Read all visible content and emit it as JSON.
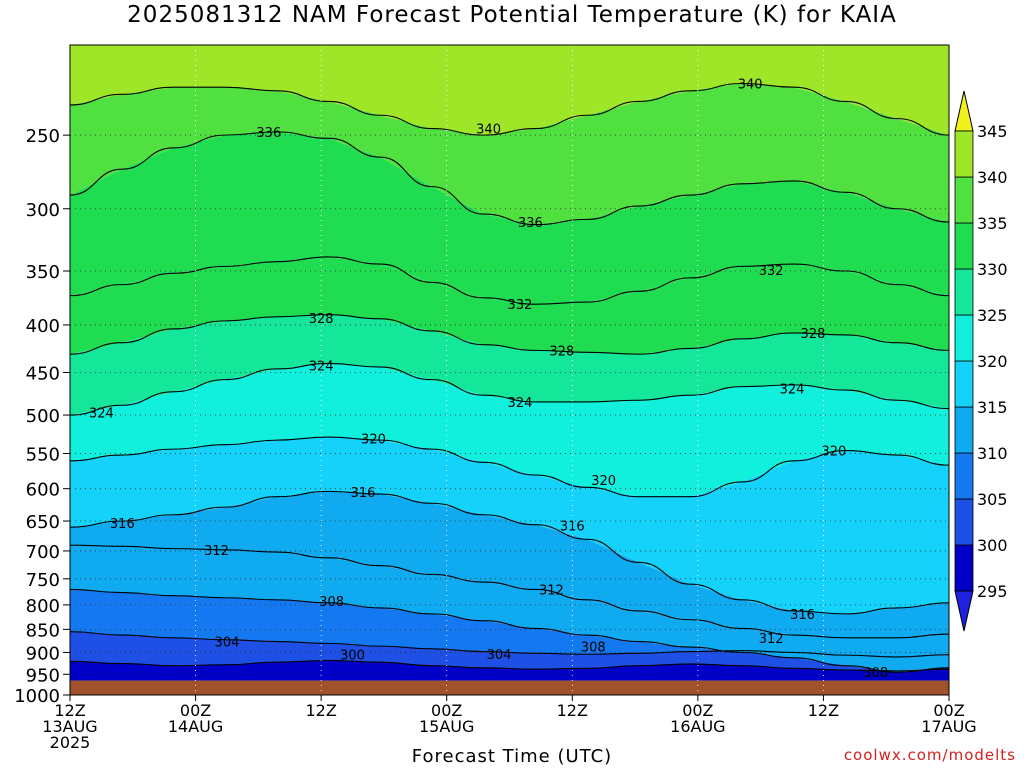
{
  "chart_data": {
    "type": "heatmap",
    "title": "2025081312 NAM Forecast Potential Temperature (K) for KAIA",
    "xlabel": "Forecast Time (UTC)",
    "ylabel": "",
    "credit": "coolwx.com/modelts",
    "x_hours": [
      0,
      12,
      24,
      36,
      48,
      60,
      72,
      84
    ],
    "x_ticks": [
      {
        "hour": 0,
        "lines": [
          "12Z",
          "13AUG",
          "2025"
        ]
      },
      {
        "hour": 12,
        "lines": [
          "00Z",
          "14AUG"
        ]
      },
      {
        "hour": 24,
        "lines": [
          "12Z"
        ]
      },
      {
        "hour": 36,
        "lines": [
          "00Z",
          "15AUG"
        ]
      },
      {
        "hour": 48,
        "lines": [
          "12Z"
        ]
      },
      {
        "hour": 60,
        "lines": [
          "00Z",
          "16AUG"
        ]
      },
      {
        "hour": 72,
        "lines": [
          "12Z"
        ]
      },
      {
        "hour": 84,
        "lines": [
          "00Z",
          "17AUG"
        ]
      }
    ],
    "y_ticks": [
      250,
      300,
      350,
      400,
      450,
      500,
      550,
      600,
      650,
      700,
      750,
      800,
      850,
      900,
      950,
      1000
    ],
    "ylim": [
      200,
      1000
    ],
    "y_scale": "log-pressure (inverted)",
    "surface_pressure": 965,
    "colorbar": {
      "levels": [
        295,
        300,
        305,
        310,
        315,
        320,
        325,
        330,
        335,
        340,
        345
      ],
      "colors": [
        "#2020e0",
        "#0000c8",
        "#1e50e6",
        "#1478f0",
        "#10aaf0",
        "#14d2fa",
        "#10f0dc",
        "#14e69a",
        "#20dc50",
        "#50e040",
        "#a0e628",
        "#f0f01a"
      ],
      "extend": "both"
    },
    "isentropes": [
      {
        "theta": 300,
        "label_pos": [
          [
            27,
            905
          ]
        ],
        "p": [
          920,
          925,
          930,
          928,
          922,
          918,
          922,
          930,
          935,
          938,
          936,
          930,
          926,
          930,
          936,
          940,
          942,
          938
        ]
      },
      {
        "theta": 304,
        "label_pos": [
          [
            15,
            876
          ],
          [
            41,
            904
          ]
        ],
        "p": [
          855,
          862,
          868,
          872,
          876,
          880,
          886,
          892,
          898,
          902,
          904,
          902,
          898,
          896,
          900,
          906,
          910,
          905
        ]
      },
      {
        "theta": 308,
        "label_pos": [
          [
            25,
            792
          ],
          [
            50,
            887
          ],
          [
            77,
            945
          ]
        ],
        "p": [
          770,
          776,
          782,
          786,
          790,
          796,
          806,
          818,
          832,
          848,
          862,
          876,
          888,
          900,
          912,
          930,
          945,
          935
        ]
      },
      {
        "theta": 312,
        "label_pos": [
          [
            14,
            698
          ],
          [
            46,
            770
          ],
          [
            67,
            868
          ]
        ],
        "p": [
          690,
          692,
          696,
          698,
          702,
          712,
          726,
          742,
          756,
          770,
          790,
          812,
          830,
          848,
          862,
          868,
          868,
          860
        ]
      },
      {
        "theta": 316,
        "label_pos": [
          [
            5,
            653
          ],
          [
            28,
            605
          ],
          [
            48,
            657
          ],
          [
            70,
            818
          ]
        ],
        "p": [
          660,
          650,
          640,
          628,
          612,
          604,
          608,
          622,
          640,
          656,
          680,
          720,
          760,
          790,
          812,
          818,
          806,
          796
        ]
      },
      {
        "theta": 320,
        "label_pos": [
          [
            29,
            530
          ],
          [
            51,
            587
          ],
          [
            73,
            546
          ]
        ],
        "p": [
          560,
          552,
          544,
          538,
          532,
          528,
          532,
          544,
          562,
          580,
          598,
          612,
          612,
          590,
          560,
          546,
          552,
          566
        ]
      },
      {
        "theta": 324,
        "label_pos": [
          [
            3,
            497
          ],
          [
            24,
            442
          ],
          [
            43,
            484
          ],
          [
            69,
            468
          ]
        ],
        "p": [
          500,
          488,
          472,
          458,
          446,
          440,
          444,
          458,
          476,
          484,
          484,
          482,
          476,
          466,
          464,
          470,
          482,
          492
        ]
      },
      {
        "theta": 328,
        "label_pos": [
          [
            24,
            393
          ],
          [
            47,
            426
          ],
          [
            71,
            408
          ]
        ],
        "p": [
          430,
          418,
          404,
          396,
          392,
          390,
          394,
          406,
          420,
          426,
          428,
          430,
          424,
          414,
          408,
          410,
          418,
          426
        ]
      },
      {
        "theta": 332,
        "label_pos": [
          [
            43,
            380
          ],
          [
            67,
            349
          ]
        ],
        "p": [
          372,
          362,
          352,
          346,
          342,
          338,
          344,
          360,
          374,
          380,
          378,
          368,
          356,
          346,
          344,
          350,
          362,
          372
        ]
      },
      {
        "theta": 336,
        "label_pos": [
          [
            19,
            248
          ],
          [
            44,
            310
          ]
        ],
        "p": [
          290,
          272,
          258,
          250,
          248,
          252,
          264,
          284,
          304,
          312,
          308,
          298,
          290,
          282,
          280,
          288,
          300,
          310
        ]
      },
      {
        "theta": 340,
        "label_pos": [
          [
            40,
            246
          ],
          [
            65,
            220
          ]
        ],
        "p": [
          232,
          226,
          222,
          222,
          224,
          230,
          238,
          246,
          250,
          246,
          238,
          230,
          224,
          220,
          222,
          230,
          240,
          250
        ]
      }
    ]
  }
}
